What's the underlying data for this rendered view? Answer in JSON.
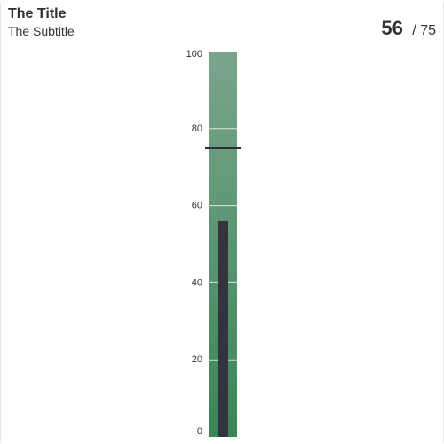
{
  "header": {
    "title": "The Title",
    "subtitle": "The Subtitle",
    "value_label": "56",
    "separator": "/",
    "target_label": "75"
  },
  "chart_data": {
    "type": "bar",
    "subtype": "vertical-bullet",
    "title": "The Title",
    "subtitle": "The Subtitle",
    "value": 56,
    "target": 75,
    "ylim": [
      0,
      100
    ],
    "ticks": [
      0,
      20,
      40,
      60,
      80,
      100
    ],
    "tick_labels": [
      "0",
      "20",
      "40",
      "60",
      "80",
      "100"
    ],
    "grid": false,
    "colors": {
      "band_bottom": "#3a8557",
      "band_top": "#7aa58c",
      "bar": "#34343f",
      "target_marker": "#2e2e36",
      "band_divider": "#ffffff"
    }
  }
}
